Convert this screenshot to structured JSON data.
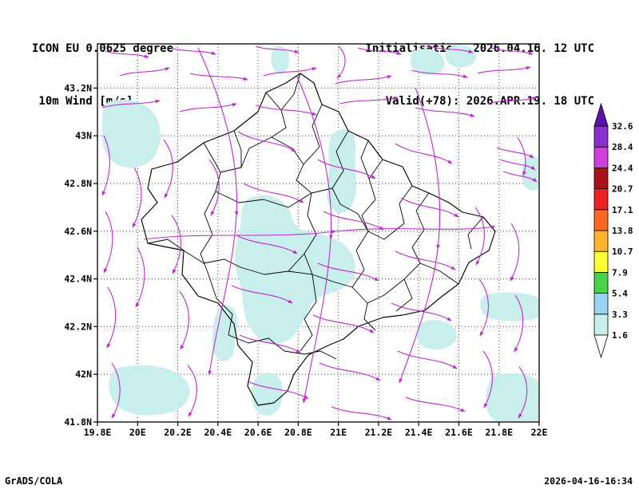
{
  "header": {
    "model": "ICON EU 0.0625 degree",
    "field": " 10m Wind [m/s]",
    "init": "Initialisation: 2026.04.16. 12 UTC",
    "valid": "Valid(+78): 2026.APR.19. 18 UTC"
  },
  "footer": {
    "left": "GrADS/COLA",
    "right": "2026-04-16-16:34"
  },
  "map": {
    "lon_ticks": [
      "19.8E",
      "20E",
      "20.2E",
      "20.4E",
      "20.6E",
      "20.8E",
      "21E",
      "21.2E",
      "21.4E",
      "21.6E",
      "21.8E",
      "22E"
    ],
    "lat_ticks": [
      "41.8N",
      "42N",
      "42.2N",
      "42.4N",
      "42.6N",
      "42.8N",
      "43N",
      "43.2N"
    ]
  },
  "colorbar": {
    "levels": [
      "1.6",
      "3.3",
      "5.4",
      "7.9",
      "10.7",
      "13.8",
      "17.1",
      "20.7",
      "24.4",
      "28.4",
      "32.6"
    ],
    "colors": [
      "#ffffff",
      "#c9efec",
      "#9ad4f2",
      "#49d149",
      "#ffff33",
      "#ffb52b",
      "#ff6820",
      "#ef2020",
      "#ad1016",
      "#cf3ed8",
      "#8c2fd0",
      "#5c12a8"
    ]
  },
  "colors": {
    "shade": "#c9efec",
    "vector": "#c127cf"
  }
}
